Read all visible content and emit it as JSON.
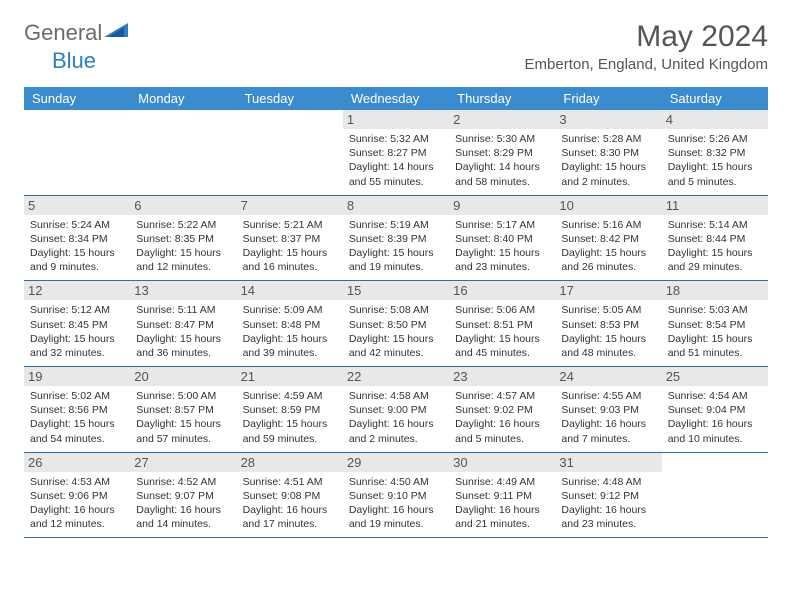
{
  "logo": {
    "word1": "General",
    "word2": "Blue"
  },
  "title": {
    "month_year": "May 2024",
    "location": "Emberton, England, United Kingdom"
  },
  "colors": {
    "header_bg": "#3b8bcf",
    "row_border": "#2f6ea6",
    "daynum_bg": "#e8e8e8",
    "text": "#333333",
    "logo_blue": "#2b7fc3",
    "logo_gray": "#6b6b6b"
  },
  "day_names": [
    "Sunday",
    "Monday",
    "Tuesday",
    "Wednesday",
    "Thursday",
    "Friday",
    "Saturday"
  ],
  "weeks": [
    [
      {
        "num": "",
        "sunrise": "",
        "sunset": "",
        "daylight": ""
      },
      {
        "num": "",
        "sunrise": "",
        "sunset": "",
        "daylight": ""
      },
      {
        "num": "",
        "sunrise": "",
        "sunset": "",
        "daylight": ""
      },
      {
        "num": "1",
        "sunrise": "Sunrise: 5:32 AM",
        "sunset": "Sunset: 8:27 PM",
        "daylight": "Daylight: 14 hours and 55 minutes."
      },
      {
        "num": "2",
        "sunrise": "Sunrise: 5:30 AM",
        "sunset": "Sunset: 8:29 PM",
        "daylight": "Daylight: 14 hours and 58 minutes."
      },
      {
        "num": "3",
        "sunrise": "Sunrise: 5:28 AM",
        "sunset": "Sunset: 8:30 PM",
        "daylight": "Daylight: 15 hours and 2 minutes."
      },
      {
        "num": "4",
        "sunrise": "Sunrise: 5:26 AM",
        "sunset": "Sunset: 8:32 PM",
        "daylight": "Daylight: 15 hours and 5 minutes."
      }
    ],
    [
      {
        "num": "5",
        "sunrise": "Sunrise: 5:24 AM",
        "sunset": "Sunset: 8:34 PM",
        "daylight": "Daylight: 15 hours and 9 minutes."
      },
      {
        "num": "6",
        "sunrise": "Sunrise: 5:22 AM",
        "sunset": "Sunset: 8:35 PM",
        "daylight": "Daylight: 15 hours and 12 minutes."
      },
      {
        "num": "7",
        "sunrise": "Sunrise: 5:21 AM",
        "sunset": "Sunset: 8:37 PM",
        "daylight": "Daylight: 15 hours and 16 minutes."
      },
      {
        "num": "8",
        "sunrise": "Sunrise: 5:19 AM",
        "sunset": "Sunset: 8:39 PM",
        "daylight": "Daylight: 15 hours and 19 minutes."
      },
      {
        "num": "9",
        "sunrise": "Sunrise: 5:17 AM",
        "sunset": "Sunset: 8:40 PM",
        "daylight": "Daylight: 15 hours and 23 minutes."
      },
      {
        "num": "10",
        "sunrise": "Sunrise: 5:16 AM",
        "sunset": "Sunset: 8:42 PM",
        "daylight": "Daylight: 15 hours and 26 minutes."
      },
      {
        "num": "11",
        "sunrise": "Sunrise: 5:14 AM",
        "sunset": "Sunset: 8:44 PM",
        "daylight": "Daylight: 15 hours and 29 minutes."
      }
    ],
    [
      {
        "num": "12",
        "sunrise": "Sunrise: 5:12 AM",
        "sunset": "Sunset: 8:45 PM",
        "daylight": "Daylight: 15 hours and 32 minutes."
      },
      {
        "num": "13",
        "sunrise": "Sunrise: 5:11 AM",
        "sunset": "Sunset: 8:47 PM",
        "daylight": "Daylight: 15 hours and 36 minutes."
      },
      {
        "num": "14",
        "sunrise": "Sunrise: 5:09 AM",
        "sunset": "Sunset: 8:48 PM",
        "daylight": "Daylight: 15 hours and 39 minutes."
      },
      {
        "num": "15",
        "sunrise": "Sunrise: 5:08 AM",
        "sunset": "Sunset: 8:50 PM",
        "daylight": "Daylight: 15 hours and 42 minutes."
      },
      {
        "num": "16",
        "sunrise": "Sunrise: 5:06 AM",
        "sunset": "Sunset: 8:51 PM",
        "daylight": "Daylight: 15 hours and 45 minutes."
      },
      {
        "num": "17",
        "sunrise": "Sunrise: 5:05 AM",
        "sunset": "Sunset: 8:53 PM",
        "daylight": "Daylight: 15 hours and 48 minutes."
      },
      {
        "num": "18",
        "sunrise": "Sunrise: 5:03 AM",
        "sunset": "Sunset: 8:54 PM",
        "daylight": "Daylight: 15 hours and 51 minutes."
      }
    ],
    [
      {
        "num": "19",
        "sunrise": "Sunrise: 5:02 AM",
        "sunset": "Sunset: 8:56 PM",
        "daylight": "Daylight: 15 hours and 54 minutes."
      },
      {
        "num": "20",
        "sunrise": "Sunrise: 5:00 AM",
        "sunset": "Sunset: 8:57 PM",
        "daylight": "Daylight: 15 hours and 57 minutes."
      },
      {
        "num": "21",
        "sunrise": "Sunrise: 4:59 AM",
        "sunset": "Sunset: 8:59 PM",
        "daylight": "Daylight: 15 hours and 59 minutes."
      },
      {
        "num": "22",
        "sunrise": "Sunrise: 4:58 AM",
        "sunset": "Sunset: 9:00 PM",
        "daylight": "Daylight: 16 hours and 2 minutes."
      },
      {
        "num": "23",
        "sunrise": "Sunrise: 4:57 AM",
        "sunset": "Sunset: 9:02 PM",
        "daylight": "Daylight: 16 hours and 5 minutes."
      },
      {
        "num": "24",
        "sunrise": "Sunrise: 4:55 AM",
        "sunset": "Sunset: 9:03 PM",
        "daylight": "Daylight: 16 hours and 7 minutes."
      },
      {
        "num": "25",
        "sunrise": "Sunrise: 4:54 AM",
        "sunset": "Sunset: 9:04 PM",
        "daylight": "Daylight: 16 hours and 10 minutes."
      }
    ],
    [
      {
        "num": "26",
        "sunrise": "Sunrise: 4:53 AM",
        "sunset": "Sunset: 9:06 PM",
        "daylight": "Daylight: 16 hours and 12 minutes."
      },
      {
        "num": "27",
        "sunrise": "Sunrise: 4:52 AM",
        "sunset": "Sunset: 9:07 PM",
        "daylight": "Daylight: 16 hours and 14 minutes."
      },
      {
        "num": "28",
        "sunrise": "Sunrise: 4:51 AM",
        "sunset": "Sunset: 9:08 PM",
        "daylight": "Daylight: 16 hours and 17 minutes."
      },
      {
        "num": "29",
        "sunrise": "Sunrise: 4:50 AM",
        "sunset": "Sunset: 9:10 PM",
        "daylight": "Daylight: 16 hours and 19 minutes."
      },
      {
        "num": "30",
        "sunrise": "Sunrise: 4:49 AM",
        "sunset": "Sunset: 9:11 PM",
        "daylight": "Daylight: 16 hours and 21 minutes."
      },
      {
        "num": "31",
        "sunrise": "Sunrise: 4:48 AM",
        "sunset": "Sunset: 9:12 PM",
        "daylight": "Daylight: 16 hours and 23 minutes."
      },
      {
        "num": "",
        "sunrise": "",
        "sunset": "",
        "daylight": ""
      }
    ]
  ]
}
